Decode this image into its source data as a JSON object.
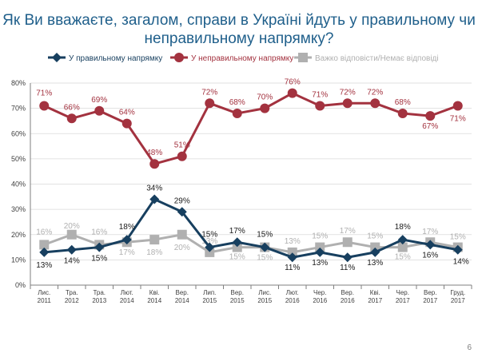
{
  "title": "Як Ви вважаєте, загалом, справи в Україні йдуть у правильному чи неправильному напрямку?",
  "page_number": "6",
  "colors": {
    "right": "#173f5f",
    "wrong": "#a3323f",
    "hard": "#b0b0b0",
    "grid": "#d9d9d9",
    "axis": "#7f7f7f"
  },
  "chart_data": {
    "type": "line",
    "title": "Як Ви вважаєте, загалом, справи в Україні йдуть у правильному чи неправильному напрямку?",
    "x": [
      [
        "Лис.",
        "2011"
      ],
      [
        "Тра.",
        "2012"
      ],
      [
        "Тра.",
        "2013"
      ],
      [
        "Лют.",
        "2014"
      ],
      [
        "Кві.",
        "2014"
      ],
      [
        "Вер.",
        "2014"
      ],
      [
        "Лип.",
        "2015"
      ],
      [
        "Вер.",
        "2015"
      ],
      [
        "Лис.",
        "2015"
      ],
      [
        "Лют.",
        "2016"
      ],
      [
        "Чер.",
        "2016"
      ],
      [
        "Вер.",
        "2016"
      ],
      [
        "Кві.",
        "2017"
      ],
      [
        "Чер.",
        "2017"
      ],
      [
        "Вер.",
        "2017"
      ],
      [
        "Груд.",
        "2017"
      ]
    ],
    "y_ticks": [
      "0%",
      "10%",
      "20%",
      "30%",
      "40%",
      "50%",
      "60%",
      "70%",
      "80%"
    ],
    "ylim": [
      0,
      80
    ],
    "grid": "horizontal",
    "legend_position": "top",
    "series": [
      {
        "key": "wrong",
        "name": "У неправильному напрямку",
        "marker": "circle",
        "values": [
          71,
          66,
          69,
          64,
          48,
          51,
          72,
          68,
          70,
          76,
          71,
          72,
          72,
          68,
          67,
          71
        ],
        "labels": [
          "71%",
          "66%",
          "69%",
          "64%",
          "48%",
          "51%",
          "72%",
          "68%",
          "70%",
          "76%",
          "71%",
          "72%",
          "72%",
          "68%",
          "67%",
          "71%"
        ]
      },
      {
        "key": "hard",
        "name": "Важко відповісти/Немає відповіді",
        "marker": "square",
        "values": [
          16,
          20,
          16,
          17,
          18,
          20,
          13,
          15,
          15,
          13,
          15,
          17,
          15,
          15,
          17,
          15
        ],
        "labels": [
          "16%",
          "20%",
          "16%",
          "17%",
          "18%",
          "20%",
          "13%",
          "15%",
          "15%",
          "13%",
          "15%",
          "17%",
          "15%",
          "15%",
          "17%",
          "15%"
        ]
      },
      {
        "key": "right",
        "name": "У правильному напрямку",
        "marker": "diamond",
        "values": [
          13,
          14,
          15,
          18,
          34,
          29,
          15,
          17,
          15,
          11,
          13,
          11,
          13,
          18,
          16,
          14
        ],
        "labels": [
          "13%",
          "14%",
          "15%",
          "18%",
          "34%",
          "29%",
          "15%",
          "17%",
          "15%",
          "11%",
          "13%",
          "11%",
          "13%",
          "18%",
          "16%",
          "14%"
        ]
      }
    ]
  }
}
